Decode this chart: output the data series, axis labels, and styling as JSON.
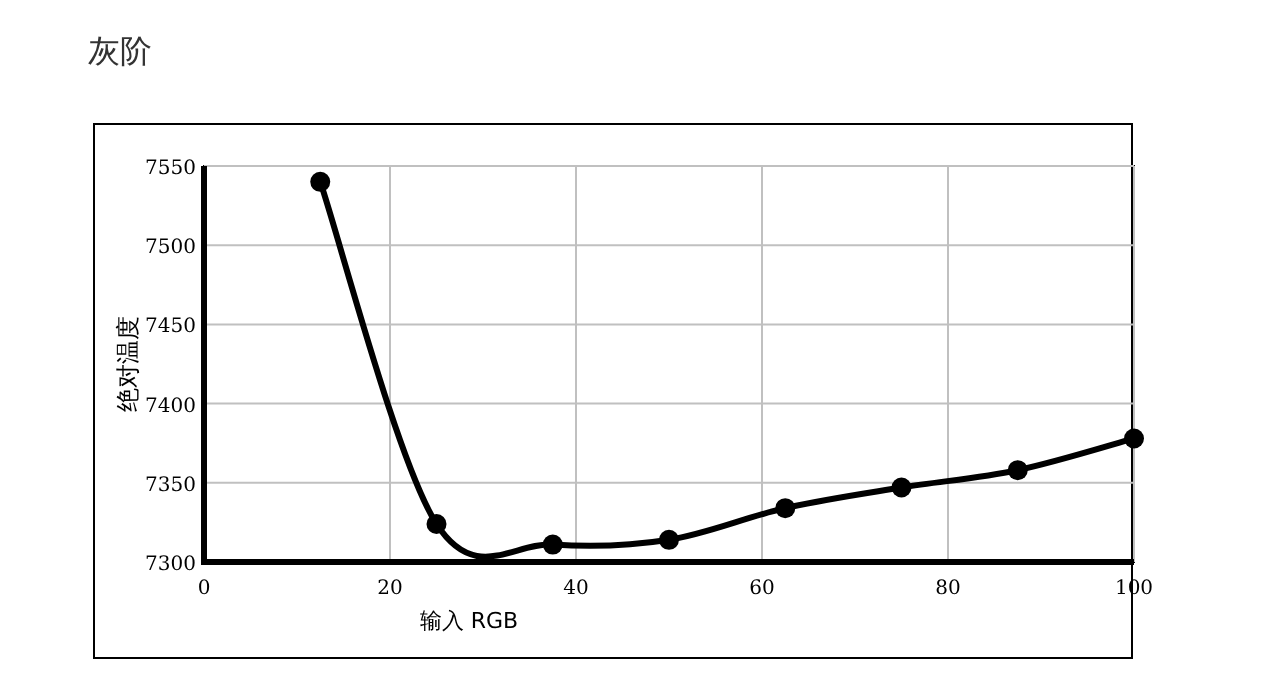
{
  "chart_data": {
    "type": "line",
    "title": "灰阶",
    "xlabel": "输入 RGB",
    "ylabel": "绝对温度",
    "x": [
      12.5,
      25,
      37.5,
      50,
      62.5,
      75,
      87.5,
      100
    ],
    "series": [
      {
        "color": "#000000",
        "values": [
          7540,
          7324,
          7311,
          7314,
          7334,
          7347,
          7358,
          7378
        ]
      }
    ],
    "xlim": [
      0,
      100
    ],
    "xticks": [
      0,
      20,
      40,
      60,
      80,
      100
    ],
    "ylim": [
      7300,
      7550
    ],
    "yticks": [
      7300,
      7350,
      7400,
      7450,
      7500,
      7550
    ],
    "grid": true,
    "marker": "circle",
    "line_style": "solid"
  }
}
